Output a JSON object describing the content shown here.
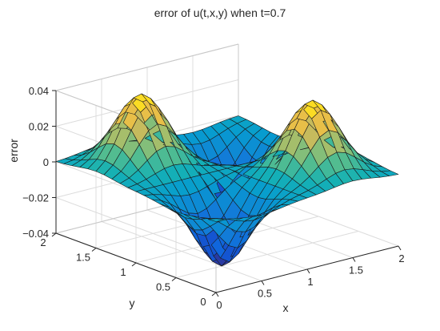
{
  "chart_data": {
    "type": "surface",
    "title": "error of u(t,x,y) when t=0.7",
    "xlabel": "x",
    "ylabel": "y",
    "zlabel": "error",
    "xlim": [
      0,
      2
    ],
    "ylim": [
      0,
      2
    ],
    "zlim": [
      -0.04,
      0.04
    ],
    "grid": true,
    "colormap": "parula",
    "mesh_resolution": 21,
    "x_ticks": [
      "0",
      "0.5",
      "1",
      "1.5",
      "2"
    ],
    "y_ticks": [
      "0",
      "0.5",
      "1",
      "1.5",
      "2"
    ],
    "z_ticks": [
      "-0.04",
      "-0.02",
      "0",
      "0.02",
      "0.04"
    ],
    "x_tick_values": [
      0,
      0.5,
      1,
      1.5,
      2
    ],
    "y_tick_values": [
      0,
      0.5,
      1,
      1.5,
      2
    ],
    "z_tick_values": [
      -0.04,
      -0.02,
      0,
      0.02,
      0.04
    ],
    "peaks": [
      {
        "x": 0.5,
        "y": 1.5,
        "z": 0.04
      },
      {
        "x": 1.5,
        "y": 0.5,
        "z": 0.04
      }
    ],
    "troughs": [
      {
        "x": 0.5,
        "y": 0.5,
        "z": -0.04
      },
      {
        "x": 1.5,
        "y": 1.5,
        "z": -0.04
      }
    ]
  }
}
